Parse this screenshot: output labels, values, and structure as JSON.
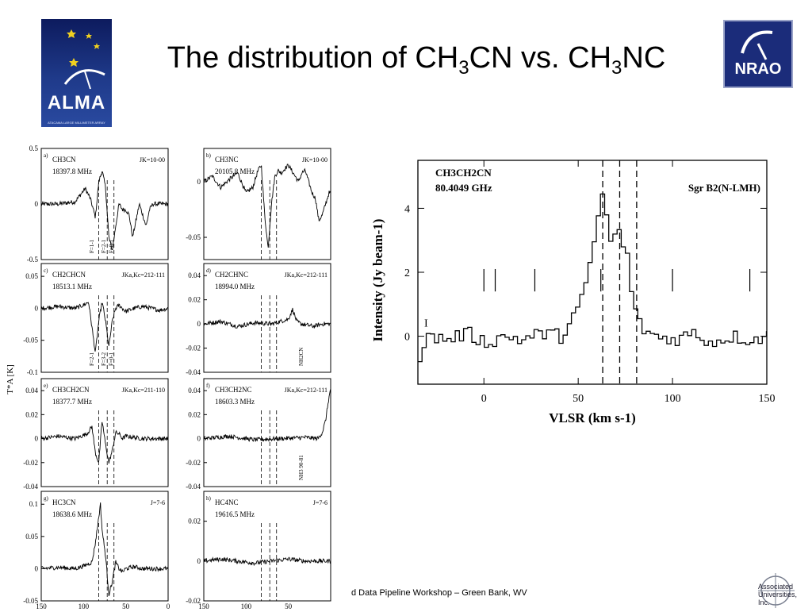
{
  "title": {
    "main": "The distribution of CH",
    "sub1": "3",
    "mid": "CN vs. CH",
    "sub2": "3",
    "end": "NC"
  },
  "footer": "d Data Pipeline Workshop – Green Bank, WV",
  "logos": {
    "alma_text": "ALMA",
    "alma_sub": "ATACAMA LARGE MILLIMETER ARRAY",
    "nrao_text": "NRAO",
    "au_line1": "Associated",
    "au_line2": "Universities, Inc."
  },
  "colors": {
    "alma_bg": "#1f3a8a",
    "nrao_bg": "#1b2c7a",
    "trace": "#000000"
  },
  "chart_data": [
    {
      "type": "line",
      "id": "a",
      "panel_label": "a)",
      "molecule": "CH3CN",
      "frequency": "18397.8 MHz",
      "transition": "JK=10-00",
      "ylim": [
        -0.5,
        0.5
      ],
      "yticks": [
        "0.5",
        "0",
        "-0.5"
      ],
      "xlim": [
        150,
        0
      ],
      "annotations": [
        "F=1-1",
        "F=2-1",
        "F=0-1"
      ],
      "series": [
        {
          "x": [
            150,
            130,
            110,
            102,
            98,
            92,
            86,
            82,
            78,
            74,
            70,
            66,
            62,
            58,
            54,
            50,
            46,
            42,
            38,
            34,
            30,
            26,
            22,
            18,
            10,
            0
          ],
          "y": [
            0.0,
            0.0,
            0.02,
            0.1,
            0.14,
            0.05,
            -0.12,
            0.2,
            0.3,
            0.15,
            -0.3,
            -0.42,
            -0.2,
            0.0,
            -0.05,
            -0.05,
            -0.1,
            -0.3,
            -0.15,
            0.0,
            -0.1,
            -0.2,
            -0.05,
            0.0,
            0.0,
            0.0
          ]
        }
      ]
    },
    {
      "type": "line",
      "id": "b",
      "panel_label": "b)",
      "molecule": "CH3NC",
      "frequency": "20105.8 MHz",
      "transition": "JK=10-00",
      "ylim": [
        -0.07,
        0.03
      ],
      "yticks": [
        "0",
        "-0.05"
      ],
      "xlim": [
        150,
        0
      ],
      "annotations": [],
      "series": [
        {
          "x": [
            150,
            140,
            130,
            120,
            110,
            100,
            92,
            86,
            82,
            78,
            74,
            70,
            66,
            62,
            58,
            54,
            50,
            46,
            42,
            38,
            34,
            30,
            26,
            22,
            18,
            14,
            10,
            6,
            2
          ],
          "y": [
            0.0,
            0.005,
            -0.005,
            0.002,
            0.008,
            -0.01,
            -0.005,
            0.01,
            0.015,
            -0.03,
            -0.06,
            -0.02,
            0.005,
            0.01,
            0.008,
            0.012,
            0.015,
            0.01,
            0.005,
            0.0,
            0.008,
            0.01,
            0.0,
            -0.01,
            -0.015,
            -0.035,
            -0.03,
            -0.02,
            -0.01
          ]
        }
      ]
    },
    {
      "type": "line",
      "id": "c",
      "panel_label": "c)",
      "molecule": "CH2CHCN",
      "frequency": "18513.1 MHz",
      "transition": "JKa,Kc=212-111",
      "ylim": [
        -0.1,
        0.07
      ],
      "yticks": [
        "0.05",
        "0",
        "-0.05",
        "-0.1"
      ],
      "xlim": [
        150,
        0
      ],
      "annotations": [
        "F=2-1",
        "F=3-2",
        "F=0-1"
      ],
      "series": [
        {
          "x": [
            150,
            130,
            110,
            100,
            94,
            90,
            86,
            82,
            78,
            74,
            70,
            66,
            62,
            58,
            54,
            50,
            40,
            30,
            20,
            10,
            0
          ],
          "y": [
            0.0,
            0.003,
            0.0,
            0.005,
            0.01,
            -0.03,
            -0.07,
            -0.02,
            0.01,
            -0.02,
            -0.06,
            -0.02,
            0.0,
            0.005,
            0.0,
            -0.005,
            0.0,
            0.003,
            0.0,
            -0.003,
            0.0
          ]
        }
      ]
    },
    {
      "type": "line",
      "id": "d",
      "panel_label": "d)",
      "molecule": "CH2CHNC",
      "frequency": "18994.0 MHz",
      "transition": "JKa,Kc=212-111",
      "ylim": [
        -0.04,
        0.05
      ],
      "yticks": [
        "0.04",
        "0.02",
        "0",
        "-0.02",
        "-0.04"
      ],
      "xlim": [
        150,
        0
      ],
      "annotations": [
        "NH2CN"
      ],
      "series": [
        {
          "x": [
            150,
            130,
            110,
            90,
            70,
            50,
            45,
            40,
            35,
            20,
            10,
            0
          ],
          "y": [
            0.0,
            0.002,
            -0.002,
            0.001,
            0.0,
            0.004,
            0.012,
            0.002,
            0.0,
            -0.002,
            0.0,
            0.0
          ]
        }
      ]
    },
    {
      "type": "line",
      "id": "e",
      "panel_label": "e)",
      "molecule": "CH3CH2CN",
      "frequency": "18377.7 MHz",
      "transition": "JKa,Kc=211-110",
      "ylim": [
        -0.04,
        0.05
      ],
      "yticks": [
        "0.04",
        "0.02",
        "0",
        "-0.02",
        "-0.04"
      ],
      "xlim": [
        150,
        0
      ],
      "annotations": [],
      "series": [
        {
          "x": [
            150,
            130,
            110,
            96,
            90,
            86,
            82,
            78,
            74,
            70,
            66,
            62,
            58,
            54,
            50,
            30,
            10,
            0
          ],
          "y": [
            0.0,
            0.002,
            0.0,
            0.004,
            0.01,
            -0.012,
            -0.02,
            0.015,
            -0.005,
            -0.02,
            -0.01,
            0.005,
            0.004,
            0.0,
            0.002,
            0.0,
            0.0,
            0.0
          ]
        }
      ]
    },
    {
      "type": "line",
      "id": "f",
      "panel_label": "f)",
      "molecule": "CH3CH2NC",
      "frequency": "18603.3 MHz",
      "transition": "JKa,Kc=212-111",
      "ylim": [
        -0.04,
        0.05
      ],
      "yticks": [
        "0.04",
        "0.02",
        "0",
        "-0.02",
        "-0.04"
      ],
      "xlim": [
        150,
        0
      ],
      "annotations": [
        "NH3 90-81"
      ],
      "series": [
        {
          "x": [
            150,
            120,
            90,
            60,
            30,
            15,
            10,
            6,
            3,
            0
          ],
          "y": [
            0.0,
            0.002,
            -0.001,
            0.0,
            0.001,
            0.0,
            0.005,
            0.015,
            0.03,
            0.042
          ]
        }
      ]
    },
    {
      "type": "line",
      "id": "g",
      "panel_label": "g)",
      "molecule": "HC3CN",
      "frequency": "18638.6 MHz",
      "transition": "J=7-6",
      "ylim": [
        -0.05,
        0.12
      ],
      "yticks": [
        "0.1",
        "0.05",
        "0",
        "-0.05"
      ],
      "xlim": [
        150,
        0
      ],
      "annotations": [],
      "series": [
        {
          "x": [
            150,
            130,
            110,
            100,
            90,
            86,
            82,
            80,
            78,
            74,
            70,
            66,
            62,
            58,
            54,
            50,
            40,
            30,
            20,
            10,
            0
          ],
          "y": [
            0.0,
            0.002,
            0.0,
            0.004,
            0.01,
            0.04,
            0.08,
            0.1,
            0.06,
            0.02,
            -0.04,
            -0.02,
            0.01,
            0.0,
            -0.005,
            0.0,
            0.003,
            0.0,
            0.0,
            0.0,
            0.0
          ]
        }
      ]
    },
    {
      "type": "line",
      "id": "h",
      "panel_label": "h)",
      "molecule": "HC4NC",
      "frequency": "19616.5 MHz",
      "transition": "J=7-6",
      "ylim": [
        -0.02,
        0.035
      ],
      "yticks": [
        "0.02",
        "0",
        "-0.02"
      ],
      "xlim": [
        150,
        0
      ],
      "annotations": [],
      "series": [
        {
          "x": [
            150,
            130,
            110,
            90,
            70,
            50,
            30,
            10,
            0
          ],
          "y": [
            0.0,
            0.001,
            0.0,
            -0.001,
            0.0,
            0.001,
            0.0,
            0.0,
            0.0
          ]
        }
      ]
    },
    {
      "type": "line",
      "id": "main",
      "label_molecule": "CH3CH2CN",
      "label_frequency": "80.4049 GHz",
      "label_source": "Sgr B2(N-LMH)",
      "xlabel": "VLSR (km s-1)",
      "ylabel": "Intensity (Jy beam-1)",
      "xlim": [
        -35,
        150
      ],
      "ylim": [
        -1.5,
        5.5
      ],
      "xticks": [
        0,
        50,
        100,
        150
      ],
      "yticks": [
        0,
        2,
        4
      ],
      "markers_x": [
        0,
        6,
        27,
        62,
        100,
        141
      ],
      "dashed_x": [
        63,
        72,
        81
      ],
      "series": [
        {
          "x": [
            -35,
            -30,
            -20,
            -10,
            0,
            10,
            20,
            30,
            40,
            45,
            50,
            53,
            56,
            58,
            60,
            62,
            63,
            64,
            66,
            68,
            70,
            72,
            74,
            76,
            78,
            80,
            84,
            90,
            100,
            110,
            120,
            130,
            140,
            150
          ],
          "y": [
            -0.6,
            0.0,
            -0.1,
            0.1,
            -0.2,
            0.0,
            -0.1,
            0.1,
            0.0,
            0.5,
            1.0,
            1.5,
            2.5,
            3.2,
            3.8,
            4.5,
            5.2,
            3.8,
            2.8,
            3.2,
            3.5,
            2.6,
            3.0,
            2.0,
            1.2,
            0.5,
            0.2,
            0.0,
            -0.1,
            0.1,
            -0.2,
            0.0,
            -0.1,
            0.0
          ]
        }
      ]
    }
  ]
}
